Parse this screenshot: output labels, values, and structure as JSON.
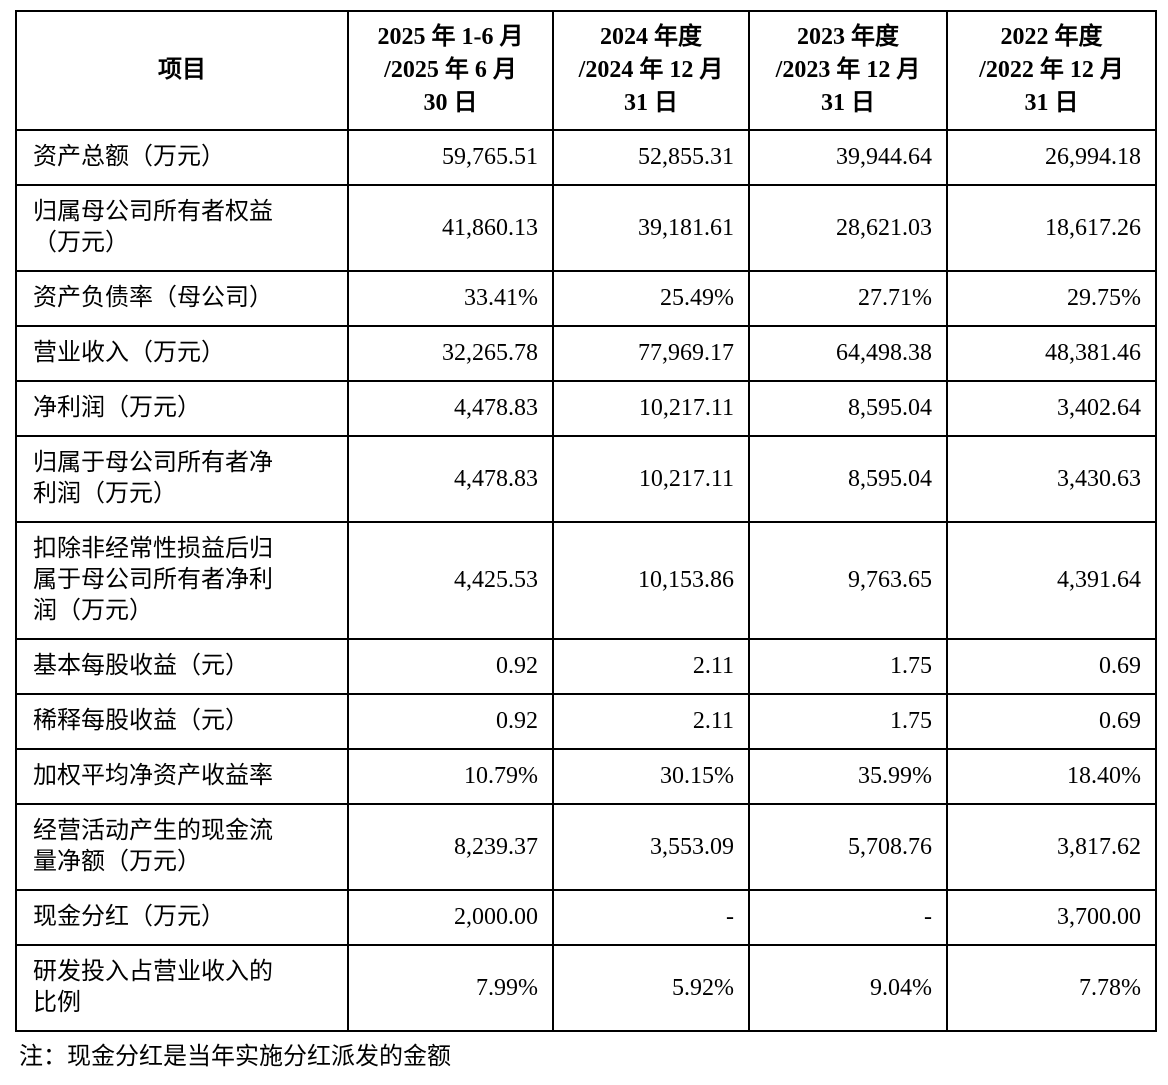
{
  "table": {
    "headers": [
      {
        "text": "项目"
      },
      {
        "text": "2025 年 1-6 月\n/2025 年 6 月\n30 日"
      },
      {
        "text": "2024 年度\n/2024 年 12 月\n31 日"
      },
      {
        "text": "2023 年度\n/2023 年 12 月\n31 日"
      },
      {
        "text": "2022 年度\n/2022 年 12 月\n31 日"
      }
    ],
    "rows": [
      {
        "label": "资产总额（万元）",
        "values": [
          "59,765.51",
          "52,855.31",
          "39,944.64",
          "26,994.18"
        ]
      },
      {
        "label": "归属母公司所有者权益\n（万元）",
        "values": [
          "41,860.13",
          "39,181.61",
          "28,621.03",
          "18,617.26"
        ]
      },
      {
        "label": "资产负债率（母公司）",
        "values": [
          "33.41%",
          "25.49%",
          "27.71%",
          "29.75%"
        ]
      },
      {
        "label": "营业收入（万元）",
        "values": [
          "32,265.78",
          "77,969.17",
          "64,498.38",
          "48,381.46"
        ]
      },
      {
        "label": "净利润（万元）",
        "values": [
          "4,478.83",
          "10,217.11",
          "8,595.04",
          "3,402.64"
        ]
      },
      {
        "label": "归属于母公司所有者净\n利润（万元）",
        "values": [
          "4,478.83",
          "10,217.11",
          "8,595.04",
          "3,430.63"
        ]
      },
      {
        "label": "扣除非经常性损益后归\n属于母公司所有者净利\n润（万元）",
        "values": [
          "4,425.53",
          "10,153.86",
          "9,763.65",
          "4,391.64"
        ]
      },
      {
        "label": "基本每股收益（元）",
        "values": [
          "0.92",
          "2.11",
          "1.75",
          "0.69"
        ]
      },
      {
        "label": "稀释每股收益（元）",
        "values": [
          "0.92",
          "2.11",
          "1.75",
          "0.69"
        ]
      },
      {
        "label": "加权平均净资产收益率",
        "values": [
          "10.79%",
          "30.15%",
          "35.99%",
          "18.40%"
        ]
      },
      {
        "label": "经营活动产生的现金流\n量净额（万元）",
        "values": [
          "8,239.37",
          "3,553.09",
          "5,708.76",
          "3,817.62"
        ]
      },
      {
        "label": "现金分红（万元）",
        "values": [
          "2,000.00",
          "-",
          "-",
          "3,700.00"
        ]
      },
      {
        "label": "研发投入占营业收入的\n比例",
        "values": [
          "7.99%",
          "5.92%",
          "9.04%",
          "7.78%"
        ]
      }
    ]
  },
  "note": "注：现金分红是当年实施分红派发的金额"
}
